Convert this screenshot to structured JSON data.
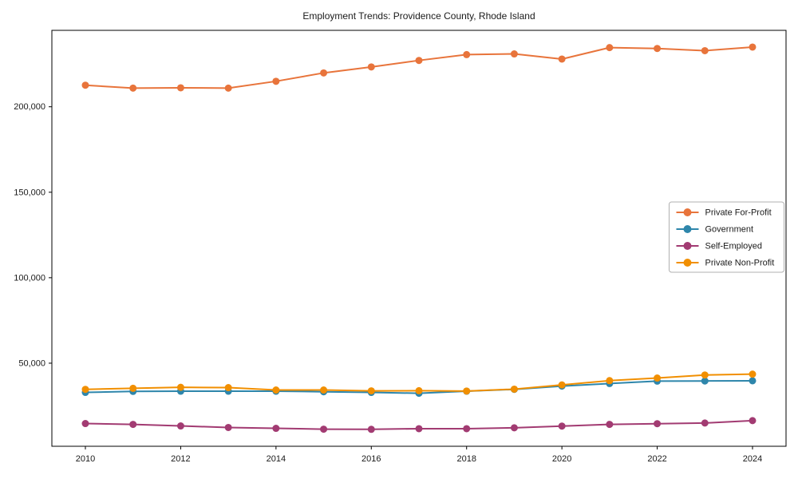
{
  "chart_data": {
    "type": "line",
    "title": "Employment Trends: Providence County, Rhode Island",
    "xlabel": "",
    "ylabel": "",
    "x": [
      2010,
      2011,
      2012,
      2013,
      2014,
      2015,
      2016,
      2017,
      2018,
      2019,
      2020,
      2021,
      2022,
      2023,
      2024
    ],
    "series": [
      {
        "name": "Private For-Profit",
        "color": "#E8743B",
        "values": [
          212600,
          210900,
          211100,
          210900,
          214900,
          219800,
          223300,
          227100,
          230500,
          230900,
          227900,
          234600,
          234100,
          232800,
          234900
        ]
      },
      {
        "name": "Government",
        "color": "#2E86AB",
        "values": [
          32900,
          33500,
          33600,
          33600,
          33600,
          33300,
          32900,
          32400,
          33600,
          34700,
          36600,
          38100,
          39500,
          39600,
          39700
        ]
      },
      {
        "name": "Self-Employed",
        "color": "#A23B72",
        "values": [
          14700,
          14200,
          13300,
          12400,
          11900,
          11400,
          11300,
          11700,
          11700,
          12200,
          13200,
          14200,
          14600,
          15000,
          16400
        ]
      },
      {
        "name": "Private Non-Profit",
        "color": "#F18F01",
        "values": [
          34700,
          35300,
          35900,
          35700,
          34300,
          34300,
          33800,
          33900,
          33700,
          34800,
          37300,
          39800,
          41300,
          43100,
          43600
        ]
      }
    ],
    "xtick_labels": [
      "2010",
      "2012",
      "2014",
      "2016",
      "2018",
      "2020",
      "2022",
      "2024"
    ],
    "xticks": [
      2010,
      2012,
      2014,
      2016,
      2018,
      2020,
      2022,
      2024
    ],
    "ytick_labels": [
      "50,000",
      "100,000",
      "150,000",
      "200,000"
    ],
    "yticks": [
      50000,
      100000,
      150000,
      200000
    ],
    "ylim": [
      1400,
      244700
    ],
    "xlim": [
      2009.3,
      2024.7
    ],
    "grid": false,
    "legend_position": "center-right",
    "legend_entries": [
      "Private For-Profit",
      "Government",
      "Self-Employed",
      "Private Non-Profit"
    ]
  },
  "colors": {
    "spine": "#000000",
    "background": "#ffffff",
    "legend_border": "#b0b0b0"
  }
}
